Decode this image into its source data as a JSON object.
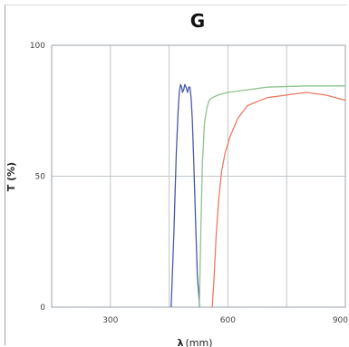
{
  "chart_data": {
    "type": "line",
    "title": "G",
    "xlabel": "λ",
    "xlabel_unit": "(mm)",
    "ylabel": "T (%)",
    "xlim": [
      150,
      900
    ],
    "ylim": [
      0,
      100
    ],
    "x_ticks": [
      300,
      600,
      900
    ],
    "x_tick_labels": [
      "300",
      "600",
      "900"
    ],
    "y_ticks": [
      0,
      50,
      100
    ],
    "y_tick_labels": [
      "0",
      "50",
      "100"
    ],
    "grid": true,
    "legend": "none",
    "series": [
      {
        "color": "#4a5aa8",
        "x": [
          455,
          462,
          468,
          473,
          476,
          479,
          482,
          484,
          487,
          490,
          493,
          497,
          500,
          503,
          506,
          509,
          513,
          518,
          522,
          528
        ],
        "y": [
          0,
          28,
          58,
          75,
          82,
          85,
          84,
          82,
          83,
          85,
          84,
          82,
          84,
          84,
          80,
          72,
          55,
          30,
          12,
          0
        ]
      },
      {
        "color": "#8fc28f",
        "x": [
          527,
          531,
          535,
          540,
          546,
          552,
          560,
          575,
          600,
          650,
          700,
          800,
          900
        ],
        "y": [
          0,
          30,
          55,
          70,
          76,
          79,
          80,
          81,
          82,
          83,
          84,
          84.5,
          84.5
        ]
      },
      {
        "color": "#f07a62",
        "x": [
          560,
          565,
          570,
          577,
          584,
          593,
          605,
          625,
          650,
          700,
          750,
          800,
          850,
          900
        ],
        "y": [
          0,
          12,
          27,
          42,
          52,
          59,
          65,
          72,
          77,
          80,
          81,
          82,
          81,
          79
        ]
      }
    ]
  }
}
